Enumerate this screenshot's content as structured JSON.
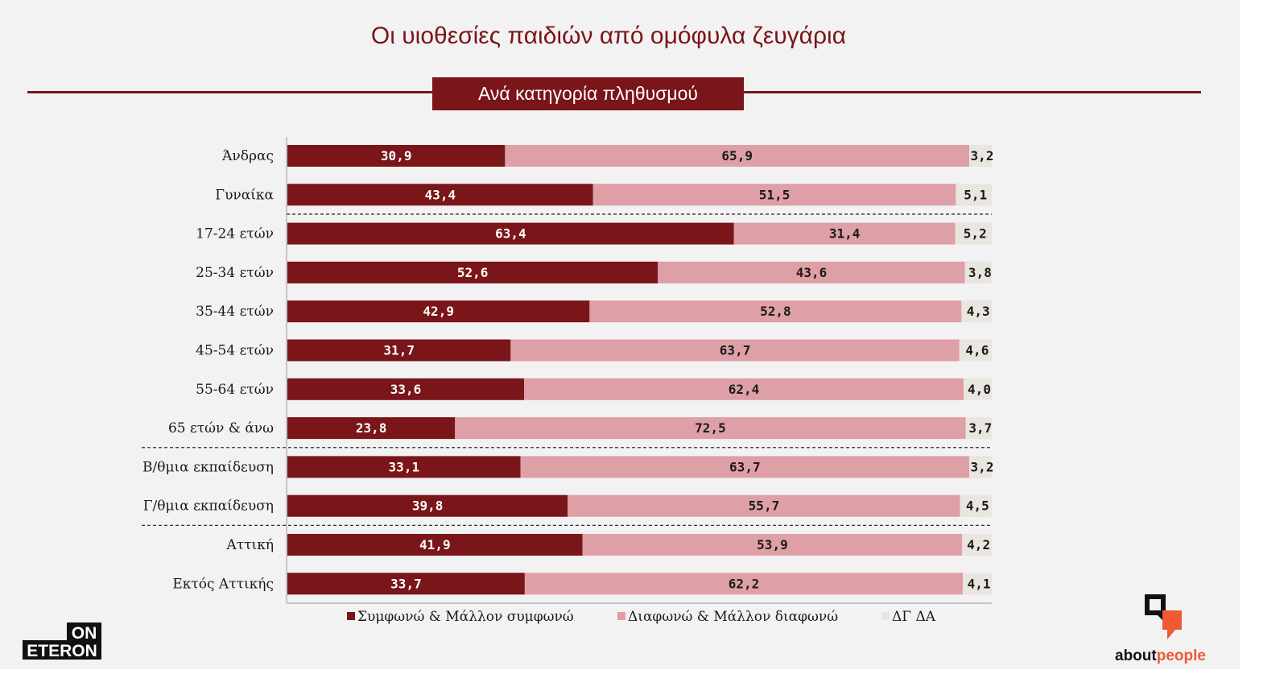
{
  "title": "Οι υιοθεσίες παιδιών από ομόφυλα ζευγάρια",
  "subtitle": "Ανά κατηγορία πληθυσμού",
  "colors": {
    "agree": "#7a1519",
    "disagree": "#df9fa7",
    "dk": "#e9e5df",
    "accent": "#7a1519",
    "orange": "#ef5a35"
  },
  "chart_data": {
    "type": "bar",
    "orientation": "horizontal",
    "stacked": true,
    "categories": [
      "Άνδρας",
      "Γυναίκα",
      "17-24 ετών",
      "25-34 ετών",
      "35-44 ετών",
      "45-54 ετών",
      "55-64 ετών",
      "65 ετών & άνω",
      "Β/θμια εκπαίδευση",
      "Γ/θμια εκπαίδευση",
      "Αττική",
      "Εκτός Αττικής"
    ],
    "series": [
      {
        "name": "Συμφωνώ & Μάλλον συμφωνώ",
        "values": [
          30.9,
          43.4,
          63.4,
          52.6,
          42.9,
          31.7,
          33.6,
          23.8,
          33.1,
          39.8,
          41.9,
          33.7
        ],
        "labels": [
          "30,9",
          "43,4",
          "63,4",
          "52,6",
          "42,9",
          "31,7",
          "33,6",
          "23,8",
          "33,1",
          "39,8",
          "41,9",
          "33,7"
        ]
      },
      {
        "name": "Διαφωνώ & Μάλλον διαφωνώ",
        "values": [
          65.9,
          51.5,
          31.4,
          43.6,
          52.8,
          63.7,
          62.4,
          72.5,
          63.7,
          55.7,
          53.9,
          62.2
        ],
        "labels": [
          "65,9",
          "51,5",
          "31,4",
          "43,6",
          "52,8",
          "63,7",
          "62,4",
          "72,5",
          "63,7",
          "55,7",
          "53,9",
          "62,2"
        ]
      },
      {
        "name": "ΔΓ ΔΑ",
        "values": [
          3.2,
          5.1,
          5.2,
          3.8,
          4.3,
          4.6,
          4.0,
          3.7,
          3.2,
          4.5,
          4.2,
          4.1
        ],
        "labels": [
          "3,2",
          "5,1",
          "5,2",
          "3,8",
          "4,3",
          "4,6",
          "4,0",
          "3,7",
          "3,2",
          "4,5",
          "4,2",
          "4,1"
        ]
      }
    ],
    "xlim": [
      0,
      100
    ],
    "group_separators_after": [
      1,
      7,
      9
    ],
    "legend": "bottom"
  },
  "logos": {
    "on_line1": "ON",
    "on_line2": "ETERON",
    "ap_part1": "about",
    "ap_part2": "people"
  }
}
